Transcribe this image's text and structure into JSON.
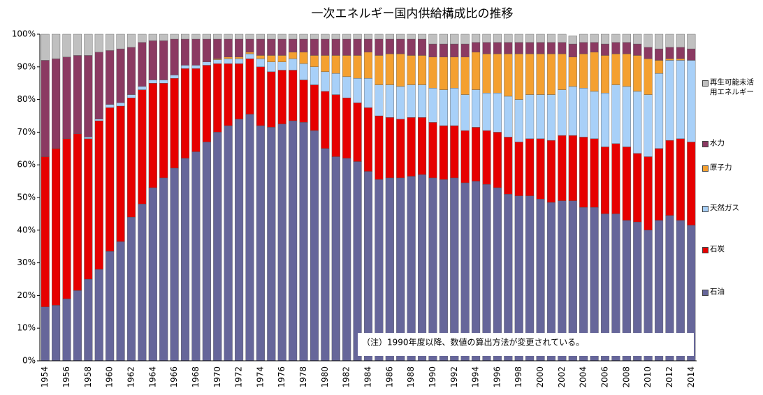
{
  "chart_data": {
    "type": "stacked-bar",
    "title": "一次エネルギー国内供給構成比の推移",
    "annotation": "（注）1990年度以降、数値の算出方法が変更されている。",
    "categories": [
      "1954",
      null,
      "1956",
      null,
      "1958",
      null,
      "1960",
      null,
      "1962",
      null,
      "1964",
      null,
      "1966",
      null,
      "1968",
      null,
      "1970",
      null,
      "1972",
      null,
      "1974",
      null,
      "1976",
      null,
      "1978",
      null,
      "1980",
      null,
      "1982",
      null,
      "1984",
      null,
      "1986",
      null,
      "1988",
      null,
      "1990",
      null,
      "1992",
      null,
      "1994",
      null,
      "1996",
      null,
      "1998",
      null,
      "2000",
      null,
      "2002",
      null,
      "2004",
      null,
      "2006",
      null,
      "2008",
      null,
      "2010",
      null,
      "2012",
      null,
      "2014"
    ],
    "ylim": [
      0,
      100
    ],
    "yticks": [
      {
        "value": 0,
        "label": "0%"
      },
      {
        "value": 10,
        "label": "10%"
      },
      {
        "value": 20,
        "label": "20%"
      },
      {
        "value": 30,
        "label": "30%"
      },
      {
        "value": 40,
        "label": "40%"
      },
      {
        "value": 50,
        "label": "50%"
      },
      {
        "value": 60,
        "label": "60%"
      },
      {
        "value": 70,
        "label": "70%"
      },
      {
        "value": 80,
        "label": "80%"
      },
      {
        "value": 90,
        "label": "90%"
      },
      {
        "value": 100,
        "label": "100%"
      }
    ],
    "series": [
      {
        "name": "石油",
        "color": "#66669a",
        "values": [
          16.5,
          17,
          19,
          21.5,
          25,
          28,
          33.5,
          36.5,
          44,
          48,
          53,
          56,
          59,
          62,
          64,
          67,
          70,
          72,
          74,
          75.5,
          72,
          71.5,
          72.5,
          73.5,
          73,
          70.5,
          65,
          62.5,
          62,
          61,
          58,
          55.5,
          56,
          56,
          56.5,
          57,
          56,
          55.5,
          56,
          54.5,
          55,
          54,
          53,
          51,
          50.5,
          50.5,
          49.5,
          48.5,
          49,
          49,
          47,
          47,
          45,
          45,
          43,
          42.5,
          40,
          43,
          44.5,
          43,
          41.5
        ]
      },
      {
        "name": "石炭",
        "color": "#e60000",
        "values": [
          46,
          48,
          49,
          48,
          43,
          45.5,
          44,
          41.5,
          36.5,
          35,
          32,
          29,
          27.5,
          27.5,
          25.5,
          23.5,
          21,
          19,
          17,
          17,
          18,
          17,
          16.5,
          15.5,
          13,
          14,
          17.5,
          19,
          18.5,
          18,
          19.5,
          19.5,
          18.5,
          18,
          18,
          17.5,
          17,
          16.5,
          16,
          16,
          16.5,
          16.5,
          17,
          17.5,
          16.5,
          17.5,
          18.5,
          19,
          20,
          20,
          21.5,
          21,
          20.5,
          21.5,
          22.5,
          21,
          22.5,
          22,
          23,
          25,
          25.5
        ]
      },
      {
        "name": "天然ガス",
        "color": "#a8d0f8",
        "values": [
          0,
          0,
          0,
          0,
          0.5,
          0.5,
          1,
          1,
          1,
          1,
          1,
          1,
          1,
          1,
          1,
          1,
          1.2,
          1.5,
          1.5,
          1.5,
          2.5,
          3,
          2.5,
          3.5,
          5,
          5.5,
          6,
          6.5,
          6.5,
          7.5,
          9,
          9.5,
          10,
          10,
          10,
          10,
          10.5,
          11,
          11.5,
          11,
          11.5,
          11.5,
          12,
          12.5,
          13,
          13.5,
          13.5,
          14,
          14,
          15,
          15,
          14.5,
          16.5,
          18,
          18.5,
          19,
          19,
          23,
          24.5,
          24,
          25
        ]
      },
      {
        "name": "原子力",
        "color": "#f4a030",
        "values": [
          0,
          0,
          0,
          0,
          0,
          0,
          0,
          0,
          0,
          0,
          0,
          0,
          0,
          0,
          0,
          0,
          0.3,
          0.5,
          0.5,
          0.5,
          1,
          2,
          2,
          2,
          3.5,
          3.5,
          5,
          5.5,
          6.5,
          7,
          8,
          9,
          9.5,
          10,
          9,
          9,
          9.5,
          10,
          9.5,
          11.5,
          11.5,
          12,
          12,
          13,
          14,
          12.5,
          12.5,
          12.5,
          11,
          9,
          10.5,
          12,
          11.5,
          9.5,
          10,
          11,
          11,
          4,
          0.5,
          0.5,
          0
        ]
      },
      {
        "name": "水力",
        "color": "#8b3a62",
        "values": [
          29.5,
          27.5,
          25,
          24,
          25,
          20.5,
          16.5,
          16.5,
          14.5,
          13.5,
          12,
          12,
          11,
          8,
          8,
          7,
          6,
          5.5,
          5.5,
          4,
          5,
          5,
          5,
          4,
          4,
          5,
          5,
          5,
          5,
          5,
          4,
          5,
          4.5,
          4.5,
          5,
          5,
          4,
          4,
          4,
          4,
          3,
          3.5,
          3.5,
          3.5,
          3.5,
          3.5,
          3.5,
          3.5,
          3.5,
          4,
          3.5,
          3,
          3.5,
          3.5,
          3.5,
          3.5,
          3.5,
          3.5,
          3.5,
          3.5,
          3.5
        ]
      },
      {
        "name": "再生可能未活用エネルギー",
        "color": "#c0c0c0",
        "values": [
          8,
          7.5,
          7,
          6.5,
          6.5,
          5.5,
          5,
          4.5,
          4,
          2.5,
          2,
          2,
          1.5,
          1.5,
          1.5,
          1.5,
          1.5,
          1.5,
          1.5,
          1.5,
          1.5,
          1.5,
          1.5,
          1.5,
          1.5,
          1.5,
          1.5,
          1.5,
          1.5,
          1.5,
          1.5,
          1.5,
          1.5,
          1.5,
          1.5,
          1.5,
          3,
          3,
          3,
          3,
          2.5,
          2.5,
          2.5,
          2.5,
          2.5,
          2.5,
          2.5,
          2.5,
          2.5,
          2.5,
          2.5,
          2.5,
          3,
          2.5,
          2.5,
          3,
          4,
          4.5,
          4,
          4,
          4.5
        ]
      }
    ]
  }
}
